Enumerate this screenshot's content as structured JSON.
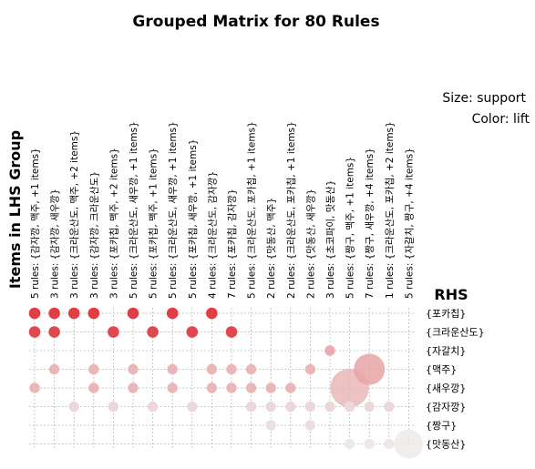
{
  "chart_data": {
    "type": "scatter",
    "title": "Grouped Matrix for 80 Rules",
    "ylabel": "Items in LHS Group",
    "rhs_label": "RHS",
    "legend": [
      "Size: support",
      "Color: lift"
    ],
    "legend_placement": "top-right",
    "grid": true,
    "lhs_groups": [
      "5 rules: {감자깡, 맥주, +1 items}",
      "3 rules: {감자깡, 새우깡}",
      "3 rules: {크라운산도, 맥주, +2 items}",
      "3 rules: {감자깡, 크라운산도}",
      "3 rules: {포카칩, 맥주, +2 items}",
      "5 rules: {크라운산도, 새우깡, +1 items}",
      "5 rules: {포카칩, 맥주, +1 items}",
      "5 rules: {크라운산도, 새우깡, +1 items}",
      "5 rules: {포카칩, 새우깡, +1 items}",
      "4 rules: {크라운산도, 감자깡}",
      "7 rules: {포카칩, 감자깡}",
      "5 rules: {크라운산도, 포카칩, +1 items}",
      "2 rules: {맛동산, 맥주}",
      "2 rules: {크라운산도, 포카칩, +1 items}",
      "2 rules: {맛동산, 새우깡}",
      "3 rules: {초코파이, 맛동산}",
      "5 rules: {짱구, 맥주, +1 items}",
      "7 rules: {짱구, 새우깡, +4 items}",
      "1 rules: {크라운산도, 포카칩, +2 items}",
      "5 rules: {자갈치, 짱구, +4 items}"
    ],
    "rhs_items": [
      "{포카칩}",
      "{크라운산도}",
      "{자갈치}",
      "{맥주}",
      "{새우깡}",
      "{감자깡}",
      "{짱구}",
      "{맛동산}"
    ],
    "points": [
      {
        "x": 0,
        "y": 0,
        "size": 0.03,
        "lift": 0.95
      },
      {
        "x": 1,
        "y": 0,
        "size": 0.03,
        "lift": 0.95
      },
      {
        "x": 2,
        "y": 0,
        "size": 0.03,
        "lift": 0.95
      },
      {
        "x": 3,
        "y": 0,
        "size": 0.03,
        "lift": 0.95
      },
      {
        "x": 5,
        "y": 0,
        "size": 0.03,
        "lift": 0.95
      },
      {
        "x": 7,
        "y": 0,
        "size": 0.03,
        "lift": 0.95
      },
      {
        "x": 9,
        "y": 0,
        "size": 0.03,
        "lift": 0.95
      },
      {
        "x": 0,
        "y": 1,
        "size": 0.03,
        "lift": 0.9
      },
      {
        "x": 1,
        "y": 1,
        "size": 0.03,
        "lift": 0.9
      },
      {
        "x": 4,
        "y": 1,
        "size": 0.03,
        "lift": 0.9
      },
      {
        "x": 6,
        "y": 1,
        "size": 0.03,
        "lift": 0.9
      },
      {
        "x": 8,
        "y": 1,
        "size": 0.03,
        "lift": 0.9
      },
      {
        "x": 10,
        "y": 1,
        "size": 0.03,
        "lift": 0.9
      },
      {
        "x": 15,
        "y": 2,
        "size": 0.02,
        "lift": 0.35
      },
      {
        "x": 1,
        "y": 3,
        "size": 0.02,
        "lift": 0.3
      },
      {
        "x": 3,
        "y": 3,
        "size": 0.02,
        "lift": 0.3
      },
      {
        "x": 5,
        "y": 3,
        "size": 0.02,
        "lift": 0.3
      },
      {
        "x": 7,
        "y": 3,
        "size": 0.02,
        "lift": 0.3
      },
      {
        "x": 9,
        "y": 3,
        "size": 0.02,
        "lift": 0.3
      },
      {
        "x": 10,
        "y": 3,
        "size": 0.02,
        "lift": 0.3
      },
      {
        "x": 11,
        "y": 3,
        "size": 0.02,
        "lift": 0.3
      },
      {
        "x": 14,
        "y": 3,
        "size": 0.02,
        "lift": 0.3
      },
      {
        "x": 17,
        "y": 3,
        "size": 0.6,
        "lift": 0.4
      },
      {
        "x": 0,
        "y": 4,
        "size": 0.02,
        "lift": 0.3
      },
      {
        "x": 3,
        "y": 4,
        "size": 0.02,
        "lift": 0.3
      },
      {
        "x": 5,
        "y": 4,
        "size": 0.02,
        "lift": 0.3
      },
      {
        "x": 7,
        "y": 4,
        "size": 0.02,
        "lift": 0.3
      },
      {
        "x": 9,
        "y": 4,
        "size": 0.02,
        "lift": 0.3
      },
      {
        "x": 10,
        "y": 4,
        "size": 0.02,
        "lift": 0.3
      },
      {
        "x": 11,
        "y": 4,
        "size": 0.02,
        "lift": 0.3
      },
      {
        "x": 12,
        "y": 4,
        "size": 0.02,
        "lift": 0.3
      },
      {
        "x": 13,
        "y": 4,
        "size": 0.02,
        "lift": 0.3
      },
      {
        "x": 16,
        "y": 4,
        "size": 1.0,
        "lift": 0.3
      },
      {
        "x": 2,
        "y": 5,
        "size": 0.02,
        "lift": 0.12
      },
      {
        "x": 4,
        "y": 5,
        "size": 0.02,
        "lift": 0.12
      },
      {
        "x": 6,
        "y": 5,
        "size": 0.02,
        "lift": 0.12
      },
      {
        "x": 8,
        "y": 5,
        "size": 0.02,
        "lift": 0.12
      },
      {
        "x": 11,
        "y": 5,
        "size": 0.02,
        "lift": 0.12
      },
      {
        "x": 12,
        "y": 5,
        "size": 0.02,
        "lift": 0.12
      },
      {
        "x": 13,
        "y": 5,
        "size": 0.02,
        "lift": 0.12
      },
      {
        "x": 14,
        "y": 5,
        "size": 0.02,
        "lift": 0.12
      },
      {
        "x": 15,
        "y": 5,
        "size": 0.02,
        "lift": 0.12
      },
      {
        "x": 16,
        "y": 5,
        "size": 0.02,
        "lift": 0.12
      },
      {
        "x": 17,
        "y": 5,
        "size": 0.02,
        "lift": 0.12
      },
      {
        "x": 18,
        "y": 5,
        "size": 0.02,
        "lift": 0.12
      },
      {
        "x": 12,
        "y": 6,
        "size": 0.02,
        "lift": 0.08
      },
      {
        "x": 14,
        "y": 6,
        "size": 0.02,
        "lift": 0.08
      },
      {
        "x": 16,
        "y": 7,
        "size": 0.02,
        "lift": 0.03
      },
      {
        "x": 17,
        "y": 7,
        "size": 0.02,
        "lift": 0.03
      },
      {
        "x": 18,
        "y": 7,
        "size": 0.02,
        "lift": 0.03
      },
      {
        "x": 19,
        "y": 7,
        "size": 0.5,
        "lift": 0.02
      }
    ],
    "colors": {
      "high": "#e0353a",
      "low": "#eeeeee",
      "grid": "#bbbbbb"
    }
  }
}
